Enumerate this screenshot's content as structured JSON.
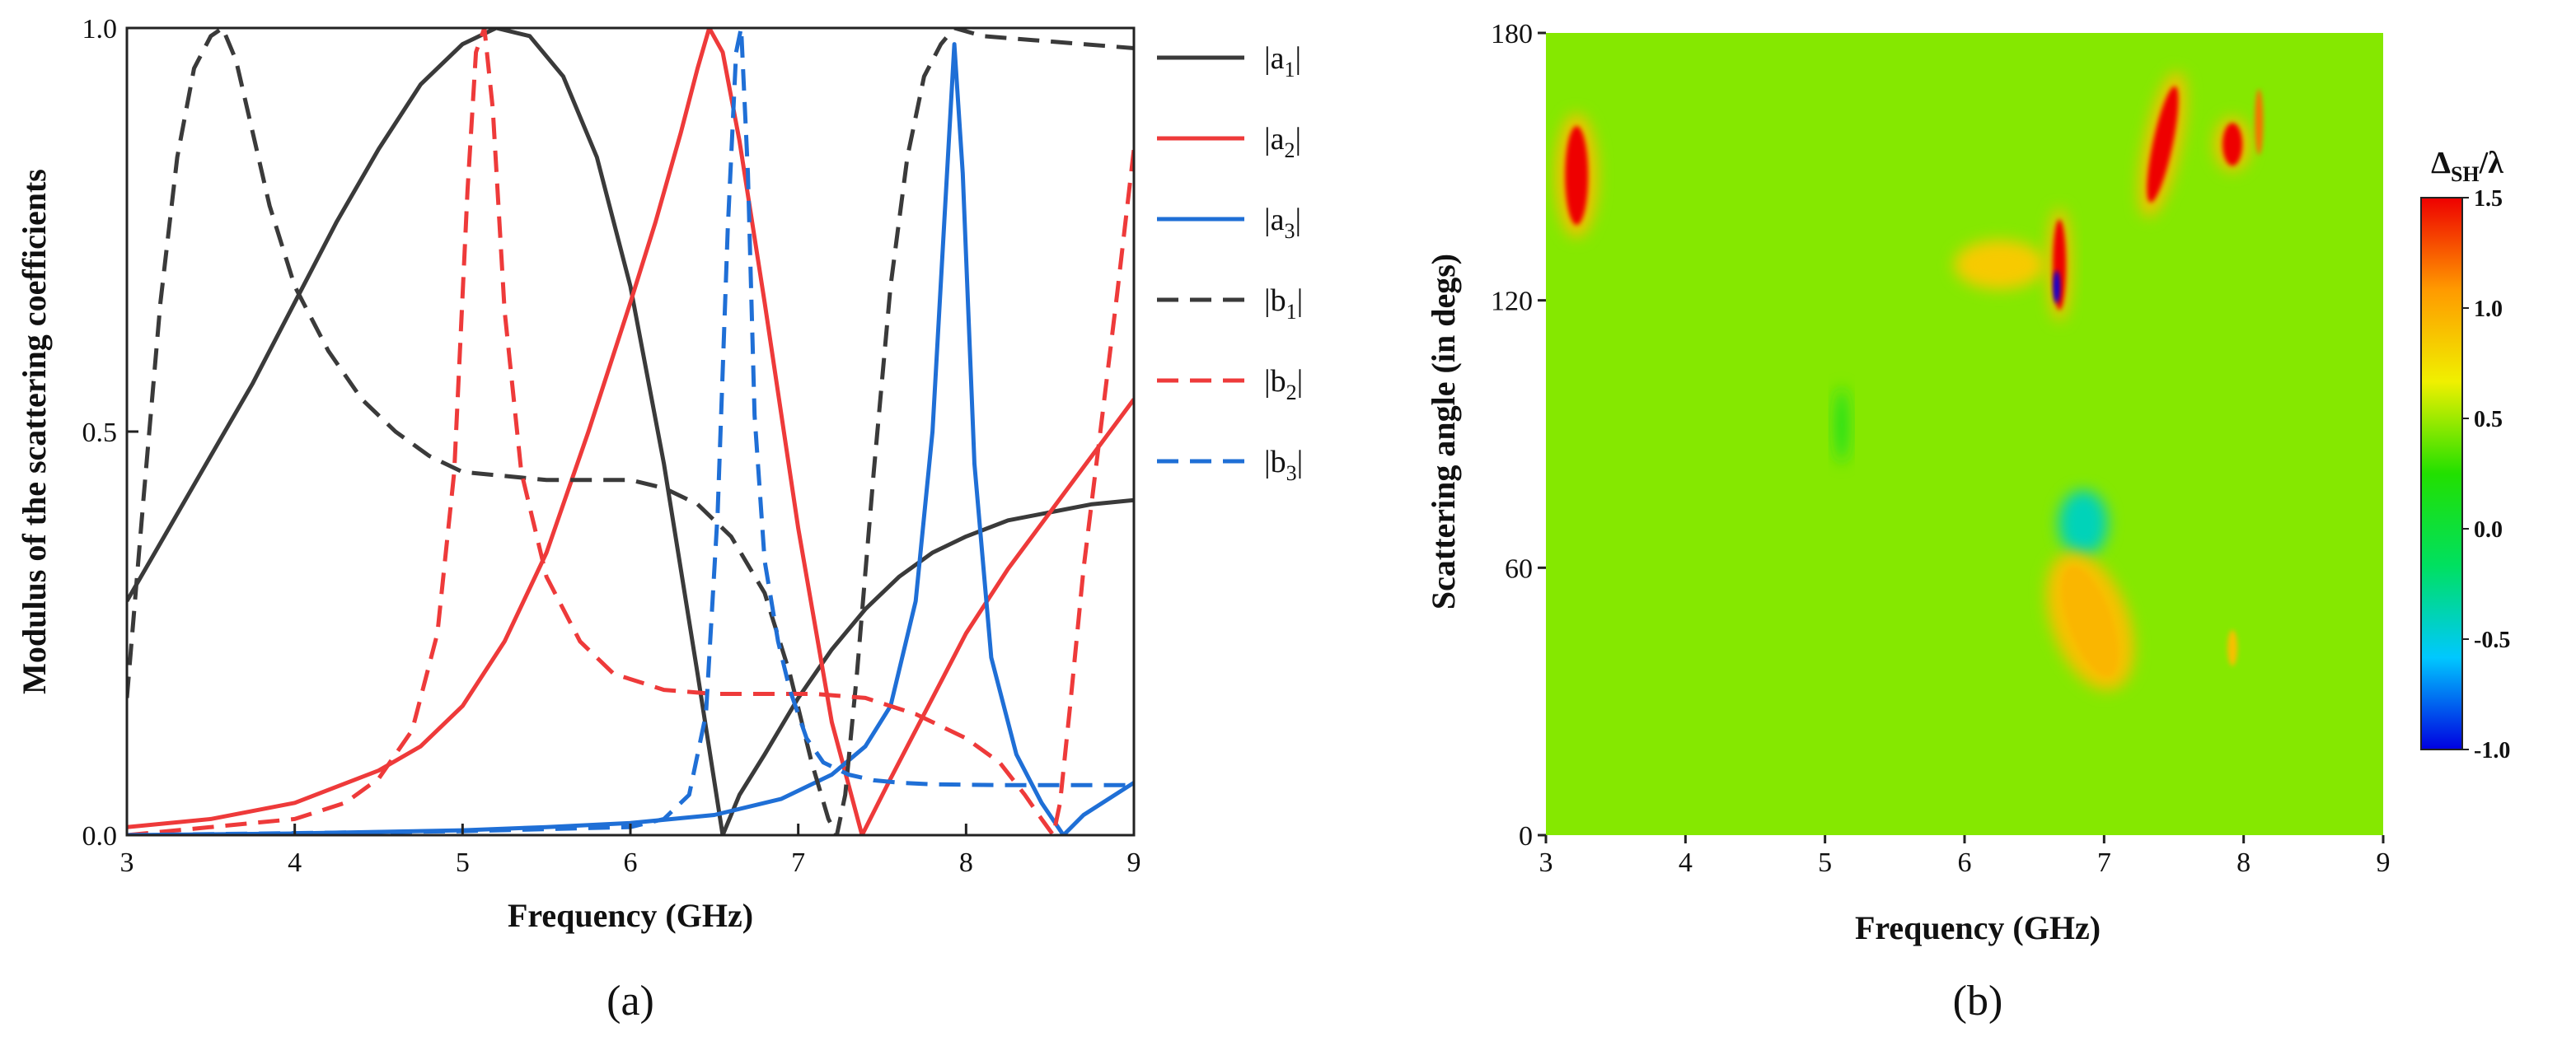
{
  "chart_data": [
    {
      "type": "line",
      "panel_label": "(a)",
      "xlabel": "Frequency (GHz)",
      "ylabel": "Modulus of the scattering coefficients",
      "xlim": [
        3,
        9
      ],
      "ylim": [
        0,
        1.0
      ],
      "xticks": [
        "3",
        "4",
        "5",
        "6",
        "7",
        "8",
        "9"
      ],
      "yticks": [
        "0.0",
        "0.5",
        "1.0"
      ],
      "legend_position": "right, outside",
      "series": [
        {
          "name": "a",
          "sub": "1",
          "label": "|a1|",
          "color": "#3a3a3a",
          "dash": "solid",
          "x": [
            3.0,
            3.25,
            3.5,
            3.75,
            4.0,
            4.25,
            4.5,
            4.75,
            5.0,
            5.2,
            5.4,
            5.6,
            5.8,
            6.0,
            6.2,
            6.4,
            6.55,
            6.65,
            6.8,
            7.0,
            7.2,
            7.4,
            7.6,
            7.8,
            8.0,
            8.25,
            8.5,
            8.75,
            9.0
          ],
          "y": [
            0.29,
            0.38,
            0.47,
            0.56,
            0.66,
            0.76,
            0.85,
            0.93,
            0.98,
            1.0,
            0.99,
            0.94,
            0.84,
            0.68,
            0.46,
            0.2,
            0.0,
            0.05,
            0.1,
            0.17,
            0.23,
            0.28,
            0.32,
            0.35,
            0.37,
            0.39,
            0.4,
            0.41,
            0.415
          ]
        },
        {
          "name": "a",
          "sub": "2",
          "label": "|a2|",
          "color": "#ee3a3a",
          "dash": "solid",
          "x": [
            3.0,
            3.5,
            4.0,
            4.5,
            4.75,
            5.0,
            5.25,
            5.5,
            5.75,
            6.0,
            6.15,
            6.3,
            6.4,
            6.47,
            6.55,
            6.65,
            6.8,
            7.0,
            7.2,
            7.38,
            7.55,
            7.7,
            7.85,
            8.0,
            8.25,
            8.5,
            8.75,
            9.0
          ],
          "y": [
            0.01,
            0.02,
            0.04,
            0.08,
            0.11,
            0.16,
            0.24,
            0.35,
            0.5,
            0.66,
            0.76,
            0.87,
            0.95,
            1.0,
            0.97,
            0.86,
            0.66,
            0.38,
            0.14,
            0.0,
            0.07,
            0.13,
            0.19,
            0.25,
            0.33,
            0.4,
            0.47,
            0.54
          ]
        },
        {
          "name": "a",
          "sub": "3",
          "label": "|a3|",
          "color": "#1f6fd6",
          "dash": "solid",
          "x": [
            3.0,
            4.0,
            5.0,
            5.5,
            6.0,
            6.5,
            6.9,
            7.2,
            7.4,
            7.55,
            7.7,
            7.8,
            7.87,
            7.93,
            7.98,
            8.05,
            8.15,
            8.3,
            8.45,
            8.58,
            8.7,
            8.85,
            9.0
          ],
          "y": [
            0.0,
            0.002,
            0.006,
            0.01,
            0.015,
            0.025,
            0.045,
            0.075,
            0.11,
            0.16,
            0.29,
            0.5,
            0.76,
            0.98,
            0.82,
            0.46,
            0.22,
            0.1,
            0.04,
            0.0,
            0.025,
            0.045,
            0.065
          ]
        },
        {
          "name": "b",
          "sub": "1",
          "label": "|b1|",
          "color": "#3a3a3a",
          "dash": "dashed",
          "x": [
            3.0,
            3.1,
            3.2,
            3.3,
            3.4,
            3.5,
            3.57,
            3.65,
            3.75,
            3.85,
            4.0,
            4.2,
            4.4,
            4.6,
            4.8,
            5.0,
            5.5,
            6.0,
            6.2,
            6.4,
            6.6,
            6.8,
            6.95,
            7.08,
            7.18,
            7.23,
            7.28,
            7.35,
            7.45,
            7.55,
            7.65,
            7.75,
            7.85,
            7.93,
            8.1,
            8.4,
            8.7,
            9.0
          ],
          "y": [
            0.17,
            0.42,
            0.66,
            0.84,
            0.95,
            0.99,
            1.0,
            0.96,
            0.87,
            0.78,
            0.68,
            0.6,
            0.54,
            0.5,
            0.47,
            0.45,
            0.44,
            0.44,
            0.43,
            0.41,
            0.37,
            0.3,
            0.2,
            0.09,
            0.02,
            0.0,
            0.05,
            0.2,
            0.45,
            0.68,
            0.84,
            0.94,
            0.98,
            1.0,
            0.99,
            0.985,
            0.98,
            0.975
          ]
        },
        {
          "name": "b",
          "sub": "2",
          "label": "|b2|",
          "color": "#ee3a3a",
          "dash": "dashed",
          "x": [
            3.0,
            3.5,
            4.0,
            4.3,
            4.5,
            4.7,
            4.85,
            4.95,
            5.03,
            5.08,
            5.13,
            5.18,
            5.25,
            5.35,
            5.5,
            5.7,
            5.9,
            6.2,
            6.5,
            6.8,
            7.1,
            7.4,
            7.7,
            8.0,
            8.2,
            8.35,
            8.45,
            8.52,
            8.56,
            8.62,
            8.7,
            8.8,
            8.9,
            9.0
          ],
          "y": [
            0.0,
            0.01,
            0.02,
            0.04,
            0.07,
            0.13,
            0.25,
            0.45,
            0.8,
            0.97,
            1.0,
            0.9,
            0.65,
            0.45,
            0.32,
            0.24,
            0.2,
            0.18,
            0.175,
            0.175,
            0.175,
            0.17,
            0.15,
            0.12,
            0.09,
            0.05,
            0.02,
            0.0,
            0.04,
            0.16,
            0.33,
            0.5,
            0.67,
            0.85
          ]
        },
        {
          "name": "b",
          "sub": "3",
          "label": "|b3|",
          "color": "#1f6fd6",
          "dash": "dashed",
          "x": [
            3.0,
            5.0,
            6.0,
            6.2,
            6.35,
            6.45,
            6.52,
            6.58,
            6.63,
            6.66,
            6.7,
            6.74,
            6.8,
            6.88,
            6.95,
            7.05,
            7.15,
            7.3,
            7.45,
            7.6,
            7.8,
            8.2,
            8.6,
            9.0
          ],
          "y": [
            0.0,
            0.005,
            0.01,
            0.02,
            0.05,
            0.15,
            0.4,
            0.75,
            0.97,
            1.0,
            0.82,
            0.52,
            0.34,
            0.24,
            0.18,
            0.12,
            0.09,
            0.075,
            0.068,
            0.065,
            0.063,
            0.062,
            0.062,
            0.062
          ]
        }
      ]
    },
    {
      "type": "heatmap",
      "panel_label": "(b)",
      "xlabel": "Frequency (GHz)",
      "ylabel": "Scattering angle  (in degs)",
      "xlim": [
        3,
        9
      ],
      "ylim": [
        0,
        180
      ],
      "xticks": [
        "3",
        "4",
        "5",
        "6",
        "7",
        "8",
        "9"
      ],
      "yticks": [
        "0",
        "60",
        "120",
        "180"
      ],
      "colorbar": {
        "title_main": "Δ",
        "title_sub": "SH",
        "title_rest": "/λ",
        "range": [
          -1.0,
          1.5
        ],
        "ticks": [
          "1.5",
          "1.0",
          "0.5",
          "0.0",
          "-0.5",
          "-1.0"
        ],
        "colors": [
          "#0000e0",
          "#00c8ff",
          "#00e060",
          "#22e000",
          "#f0f000",
          "#ff9a00",
          "#ee0000"
        ]
      },
      "background_value": 0.45,
      "features": [
        {
          "freq": 3.22,
          "angle": 148,
          "value": 1.5
        },
        {
          "freq": 5.12,
          "angle": 92,
          "value": 0.1
        },
        {
          "freq": 6.25,
          "angle": 128,
          "value": 0.85
        },
        {
          "freq": 6.68,
          "angle": 128,
          "value": 1.5
        },
        {
          "freq": 6.66,
          "angle": 123,
          "value": -1.0
        },
        {
          "freq": 6.85,
          "angle": 70,
          "value": -0.4
        },
        {
          "freq": 6.9,
          "angle": 48,
          "value": 0.95
        },
        {
          "freq": 7.42,
          "angle": 155,
          "value": 1.5
        },
        {
          "freq": 7.92,
          "angle": 155,
          "value": 1.5
        },
        {
          "freq": 8.11,
          "angle": 160,
          "value": 1.2
        },
        {
          "freq": 7.92,
          "angle": 42,
          "value": 0.9
        }
      ]
    }
  ]
}
